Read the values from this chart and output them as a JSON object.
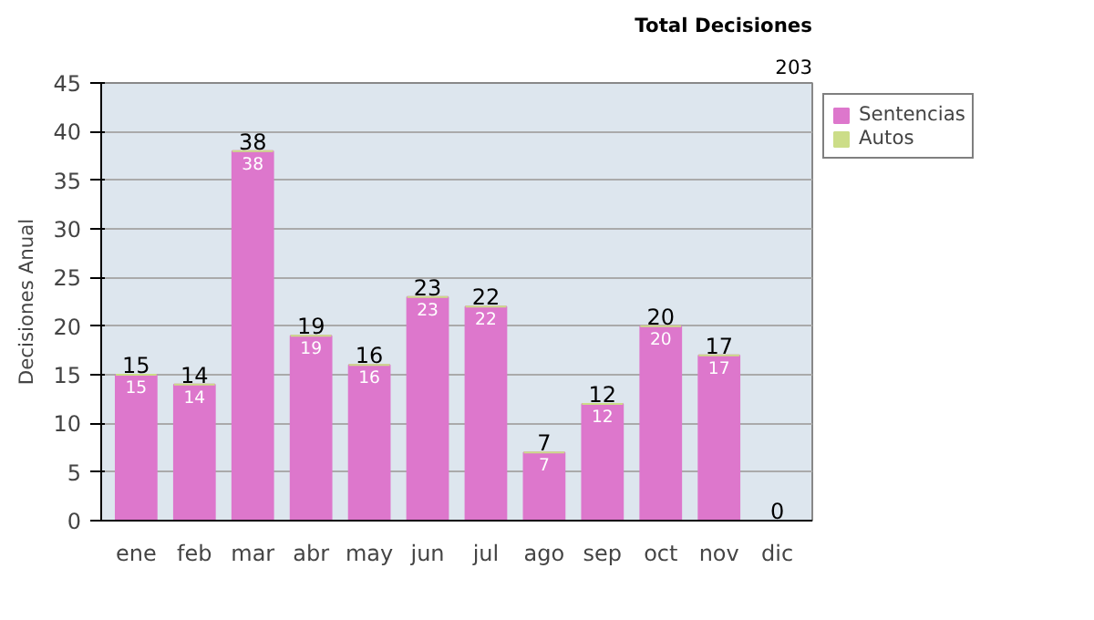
{
  "chart_data": {
    "type": "bar",
    "stacked": true,
    "ylabel": "Decisiones Anual",
    "categories": [
      "ene",
      "feb",
      "mar",
      "abr",
      "may",
      "jun",
      "jul",
      "ago",
      "sep",
      "oct",
      "nov",
      "dic"
    ],
    "series": [
      {
        "name": "Sentencias",
        "color": "#dd77cc",
        "values": [
          15,
          14,
          38,
          19,
          16,
          23,
          22,
          7,
          12,
          20,
          17,
          0
        ],
        "value_labels": [
          "15",
          "14",
          "38",
          "19",
          "16",
          "23",
          "22",
          "7",
          "12",
          "20",
          "17",
          null
        ]
      },
      {
        "name": "Autos",
        "color": "#ccdd88",
        "values": [
          0,
          0,
          0,
          0,
          0,
          0,
          0,
          0,
          0,
          0,
          0,
          0
        ]
      }
    ],
    "totals": [
      "15",
      "14",
      "38",
      "19",
      "16",
      "23",
      "22",
      "7",
      "12",
      "20",
      "17",
      "0"
    ],
    "ylim": [
      0,
      45
    ],
    "yticks": [
      0,
      5,
      10,
      15,
      20,
      25,
      30,
      35,
      40,
      45
    ],
    "grid": "y",
    "legend": "right",
    "annotations": [
      "Total Decisiones",
      "203"
    ]
  }
}
